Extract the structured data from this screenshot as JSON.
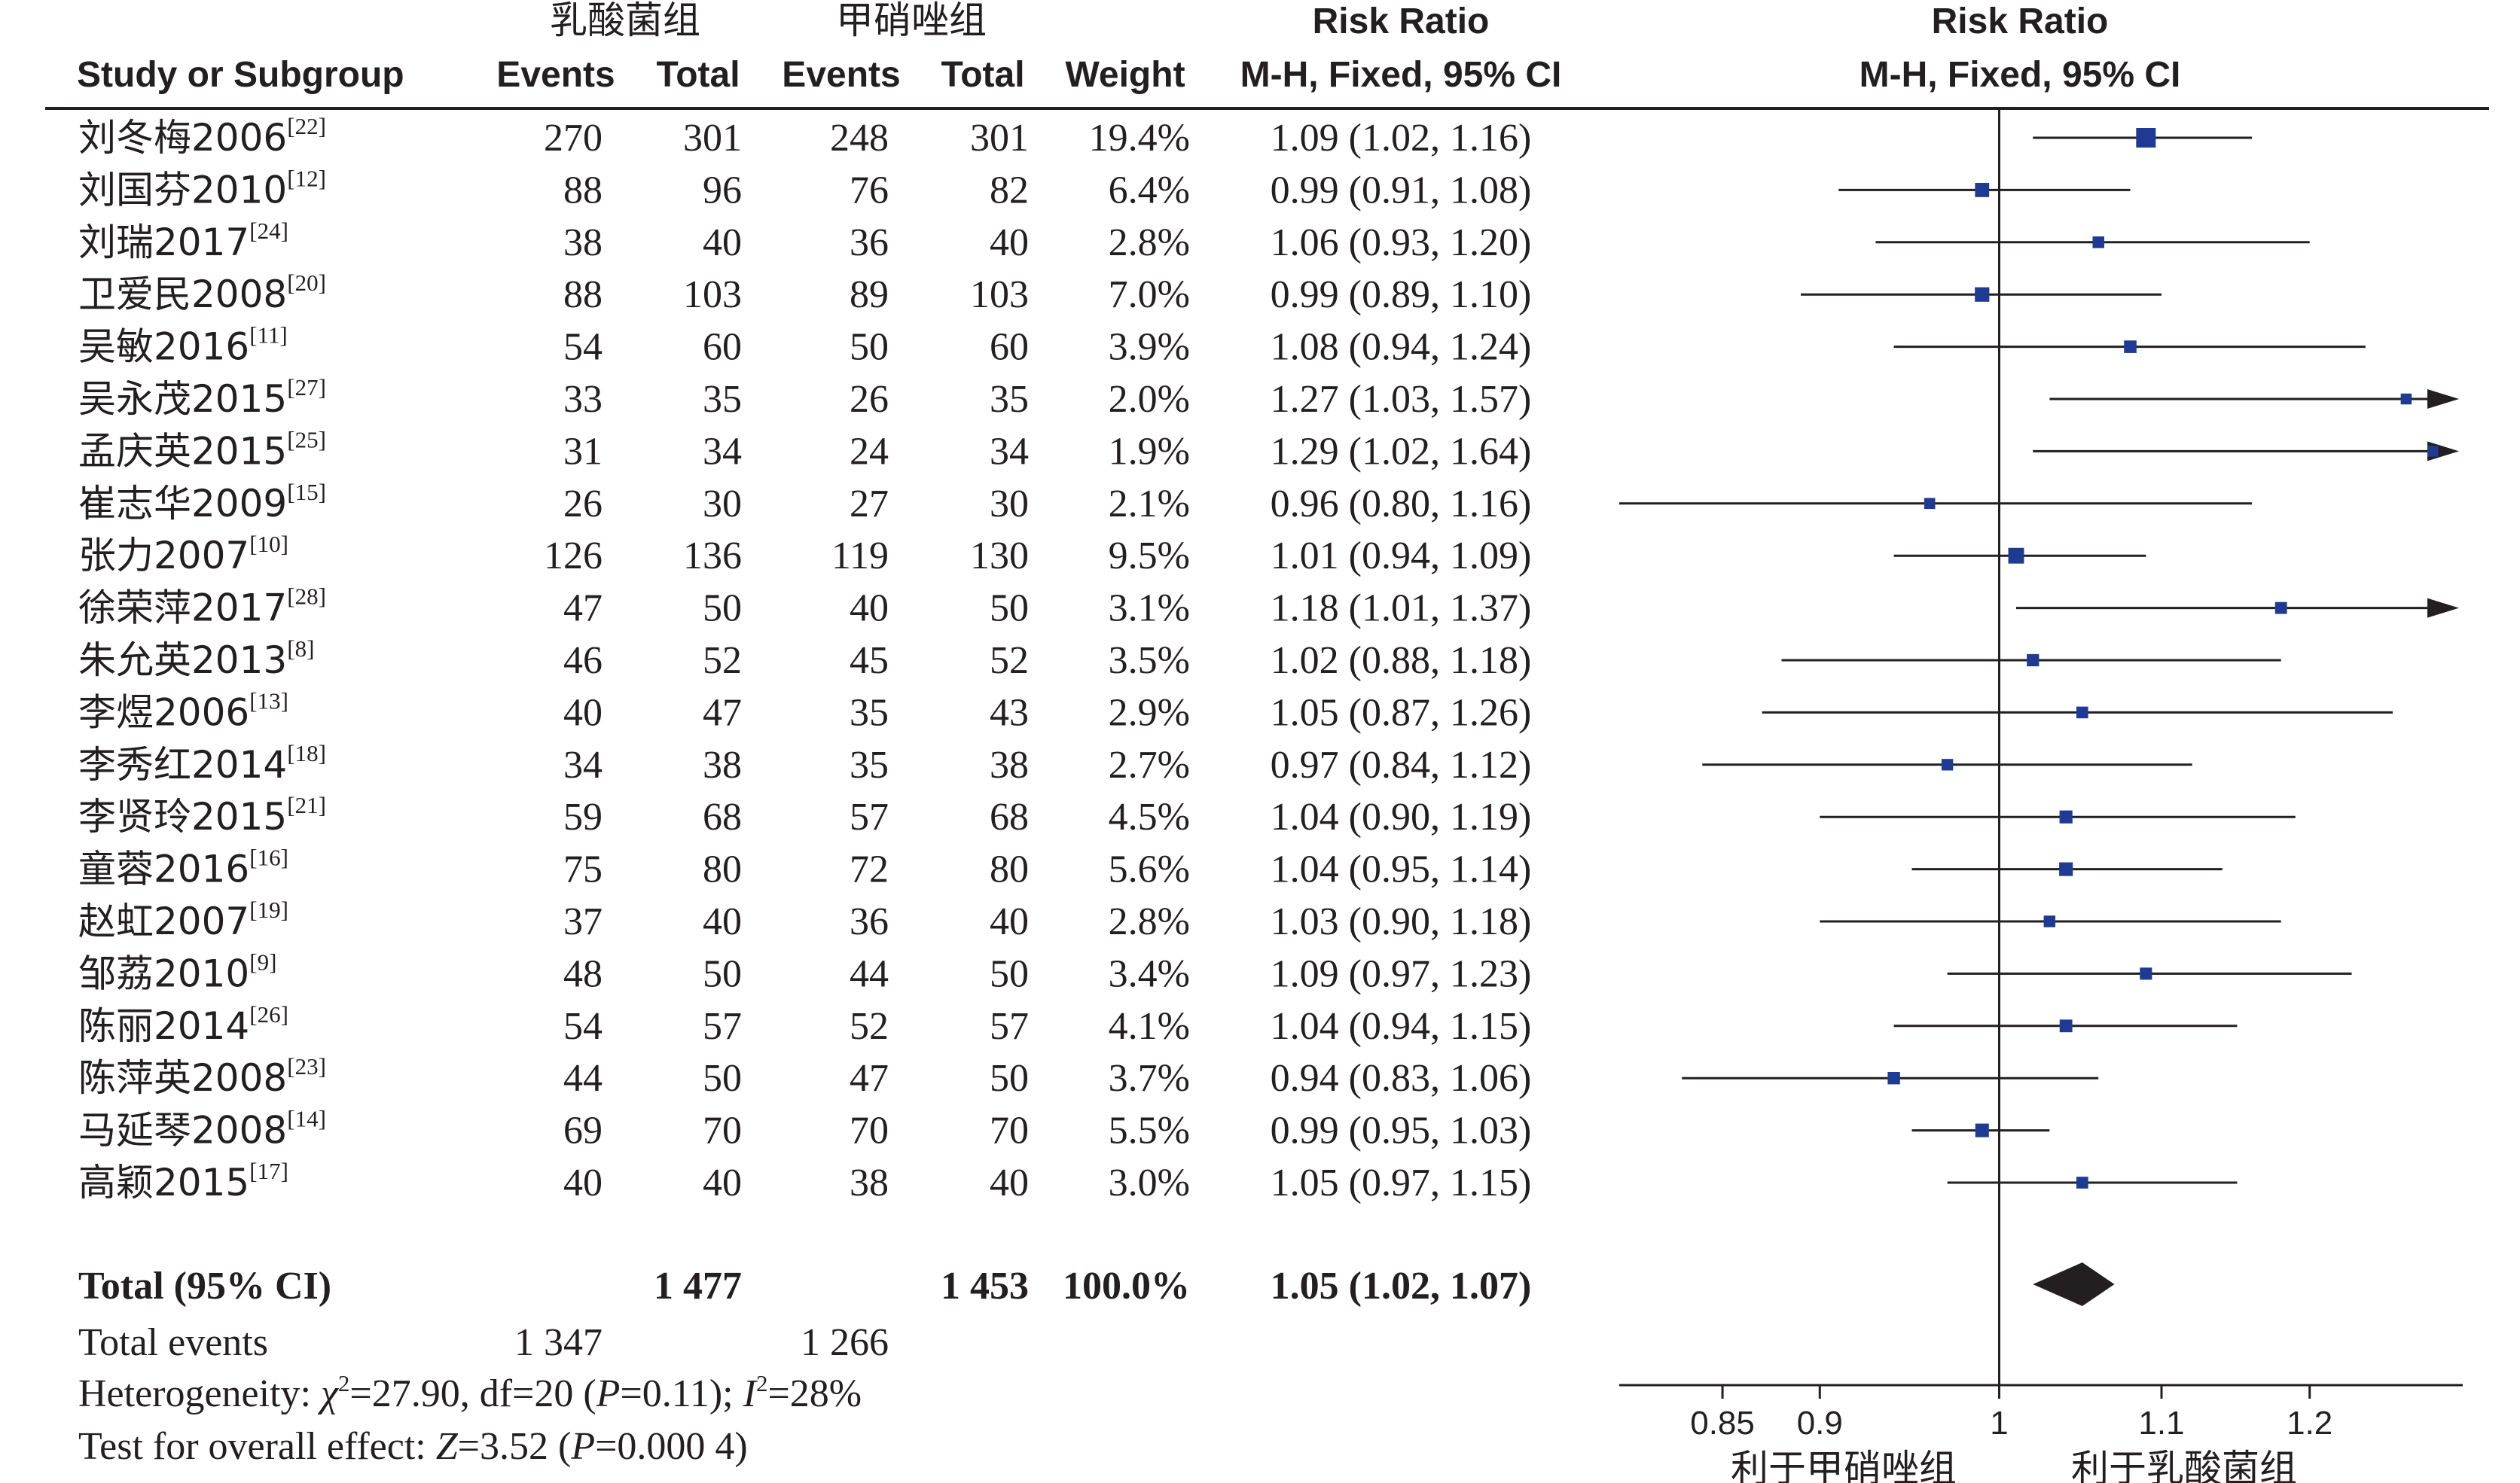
{
  "header": {
    "col_study": "Study or Subgroup",
    "group1": "乳酸菌组",
    "group2": "甲硝唑组",
    "events": "Events",
    "total": "Total",
    "weight": "Weight",
    "rr_title": "Risk Ratio",
    "rr_method": "M-H, Fixed, 95% CI",
    "plot_title": "Risk Ratio",
    "plot_method": "M-H, Fixed, 95% CI"
  },
  "rows": [
    {
      "study": "刘冬梅2006",
      "ref": "[22]",
      "e1": "270",
      "t1": "301",
      "e2": "248",
      "t2": "301",
      "weight": "19.4%",
      "ci": "1.09 (1.02, 1.16)"
    },
    {
      "study": "刘国芬2010",
      "ref": "[12]",
      "e1": "88",
      "t1": "96",
      "e2": "76",
      "t2": "82",
      "weight": "6.4%",
      "ci": "0.99 (0.91, 1.08)"
    },
    {
      "study": "刘瑞2017",
      "ref": "[24]",
      "e1": "38",
      "t1": "40",
      "e2": "36",
      "t2": "40",
      "weight": "2.8%",
      "ci": "1.06 (0.93, 1.20)"
    },
    {
      "study": "卫爱民2008",
      "ref": "[20]",
      "e1": "88",
      "t1": "103",
      "e2": "89",
      "t2": "103",
      "weight": "7.0%",
      "ci": "0.99 (0.89, 1.10)"
    },
    {
      "study": "吴敏2016",
      "ref": "[11]",
      "e1": "54",
      "t1": "60",
      "e2": "50",
      "t2": "60",
      "weight": "3.9%",
      "ci": "1.08 (0.94, 1.24)"
    },
    {
      "study": "吴永茂2015",
      "ref": "[27]",
      "e1": "33",
      "t1": "35",
      "e2": "26",
      "t2": "35",
      "weight": "2.0%",
      "ci": "1.27 (1.03, 1.57)"
    },
    {
      "study": "孟庆英2015",
      "ref": "[25]",
      "e1": "31",
      "t1": "34",
      "e2": "24",
      "t2": "34",
      "weight": "1.9%",
      "ci": "1.29 (1.02, 1.64)"
    },
    {
      "study": "崔志华2009",
      "ref": "[15]",
      "e1": "26",
      "t1": "30",
      "e2": "27",
      "t2": "30",
      "weight": "2.1%",
      "ci": "0.96 (0.80, 1.16)"
    },
    {
      "study": "张力2007",
      "ref": "[10]",
      "e1": "126",
      "t1": "136",
      "e2": "119",
      "t2": "130",
      "weight": "9.5%",
      "ci": "1.01 (0.94, 1.09)"
    },
    {
      "study": "徐荣萍2017",
      "ref": "[28]",
      "e1": "47",
      "t1": "50",
      "e2": "40",
      "t2": "50",
      "weight": "3.1%",
      "ci": "1.18 (1.01, 1.37)"
    },
    {
      "study": "朱允英2013",
      "ref": "[8]",
      "e1": "46",
      "t1": "52",
      "e2": "45",
      "t2": "52",
      "weight": "3.5%",
      "ci": "1.02 (0.88, 1.18)"
    },
    {
      "study": "李煜2006",
      "ref": "[13]",
      "e1": "40",
      "t1": "47",
      "e2": "35",
      "t2": "43",
      "weight": "2.9%",
      "ci": "1.05 (0.87, 1.26)"
    },
    {
      "study": "李秀红2014",
      "ref": "[18]",
      "e1": "34",
      "t1": "38",
      "e2": "35",
      "t2": "38",
      "weight": "2.7%",
      "ci": "0.97 (0.84, 1.12)"
    },
    {
      "study": "李贤玲2015",
      "ref": "[21]",
      "e1": "59",
      "t1": "68",
      "e2": "57",
      "t2": "68",
      "weight": "4.5%",
      "ci": "1.04 (0.90, 1.19)"
    },
    {
      "study": "童蓉2016",
      "ref": "[16]",
      "e1": "75",
      "t1": "80",
      "e2": "72",
      "t2": "80",
      "weight": "5.6%",
      "ci": "1.04 (0.95, 1.14)"
    },
    {
      "study": "赵虹2007",
      "ref": "[19]",
      "e1": "37",
      "t1": "40",
      "e2": "36",
      "t2": "40",
      "weight": "2.8%",
      "ci": "1.03 (0.90, 1.18)"
    },
    {
      "study": "邹荔2010",
      "ref": "[9]",
      "e1": "48",
      "t1": "50",
      "e2": "44",
      "t2": "50",
      "weight": "3.4%",
      "ci": "1.09 (0.97, 1.23)"
    },
    {
      "study": "陈丽2014",
      "ref": "[26]",
      "e1": "54",
      "t1": "57",
      "e2": "52",
      "t2": "57",
      "weight": "4.1%",
      "ci": "1.04 (0.94, 1.15)"
    },
    {
      "study": "陈萍英2008",
      "ref": "[23]",
      "e1": "44",
      "t1": "50",
      "e2": "47",
      "t2": "50",
      "weight": "3.7%",
      "ci": "0.94 (0.83, 1.06)"
    },
    {
      "study": "马延琴2008",
      "ref": "[14]",
      "e1": "69",
      "t1": "70",
      "e2": "70",
      "t2": "70",
      "weight": "5.5%",
      "ci": "0.99 (0.95, 1.03)"
    },
    {
      "study": "高颖2015",
      "ref": "[17]",
      "e1": "40",
      "t1": "40",
      "e2": "38",
      "t2": "40",
      "weight": "3.0%",
      "ci": "1.05 (0.97, 1.15)"
    }
  ],
  "total": {
    "label": "Total (95% CI)",
    "t1": "1 477",
    "t2": "1 453",
    "weight": "100.0%",
    "ci": "1.05 (1.02, 1.07)"
  },
  "events_total": {
    "label": "Total events",
    "e1": "1 347",
    "e2": "1 266"
  },
  "heterogeneity": {
    "prefix": "Heterogeneity: ",
    "chi": "χ",
    "chi_value": "=27.90, df=20 (",
    "p": "P",
    "p_value": "=0.11); ",
    "i": "I",
    "i_value": "=28%"
  },
  "overall": {
    "prefix": "Test for overall effect: ",
    "z": "Z",
    "z_value": "=3.52 (",
    "p": "P",
    "p_value": "=0.000 4)"
  },
  "axis": {
    "ticks": [
      {
        "value": 0.85,
        "label": "0.85"
      },
      {
        "value": 0.9,
        "label": "0.9"
      },
      {
        "value": 1,
        "label": "1"
      },
      {
        "value": 1.1,
        "label": "1.1"
      },
      {
        "value": 1.2,
        "label": "1.2"
      }
    ],
    "favours_left": "利于甲硝唑组",
    "favours_right": "利于乳酸菌组"
  },
  "colors": {
    "marker": "#1f3a93",
    "ink": "#231f20"
  },
  "chart_data": {
    "type": "forest",
    "scale": "log",
    "effect_measure": "Risk Ratio (M-H, Fixed, 95% CI)",
    "xlim": [
      0.8,
      1.31
    ],
    "x_ticks": [
      0.85,
      0.9,
      1,
      1.1,
      1.2
    ],
    "studies": [
      {
        "name": "刘冬梅2006",
        "rr": 1.09,
        "lower": 1.02,
        "upper": 1.16,
        "weight": 19.4
      },
      {
        "name": "刘国芬2010",
        "rr": 0.99,
        "lower": 0.91,
        "upper": 1.08,
        "weight": 6.4
      },
      {
        "name": "刘瑞2017",
        "rr": 1.06,
        "lower": 0.93,
        "upper": 1.2,
        "weight": 2.8
      },
      {
        "name": "卫爱民2008",
        "rr": 0.99,
        "lower": 0.89,
        "upper": 1.1,
        "weight": 7.0
      },
      {
        "name": "吴敏2016",
        "rr": 1.08,
        "lower": 0.94,
        "upper": 1.24,
        "weight": 3.9
      },
      {
        "name": "吴永茂2015",
        "rr": 1.27,
        "lower": 1.03,
        "upper": 1.57,
        "weight": 2.0
      },
      {
        "name": "孟庆英2015",
        "rr": 1.29,
        "lower": 1.02,
        "upper": 1.64,
        "weight": 1.9
      },
      {
        "name": "崔志华2009",
        "rr": 0.96,
        "lower": 0.8,
        "upper": 1.16,
        "weight": 2.1
      },
      {
        "name": "张力2007",
        "rr": 1.01,
        "lower": 0.94,
        "upper": 1.09,
        "weight": 9.5
      },
      {
        "name": "徐荣萍2017",
        "rr": 1.18,
        "lower": 1.01,
        "upper": 1.37,
        "weight": 3.1
      },
      {
        "name": "朱允英2013",
        "rr": 1.02,
        "lower": 0.88,
        "upper": 1.18,
        "weight": 3.5
      },
      {
        "name": "李煜2006",
        "rr": 1.05,
        "lower": 0.87,
        "upper": 1.26,
        "weight": 2.9
      },
      {
        "name": "李秀红2014",
        "rr": 0.97,
        "lower": 0.84,
        "upper": 1.12,
        "weight": 2.7
      },
      {
        "name": "李贤玲2015",
        "rr": 1.04,
        "lower": 0.9,
        "upper": 1.19,
        "weight": 4.5
      },
      {
        "name": "童蓉2016",
        "rr": 1.04,
        "lower": 0.95,
        "upper": 1.14,
        "weight": 5.6
      },
      {
        "name": "赵虹2007",
        "rr": 1.03,
        "lower": 0.9,
        "upper": 1.18,
        "weight": 2.8
      },
      {
        "name": "邹荔2010",
        "rr": 1.09,
        "lower": 0.97,
        "upper": 1.23,
        "weight": 3.4
      },
      {
        "name": "陈丽2014",
        "rr": 1.04,
        "lower": 0.94,
        "upper": 1.15,
        "weight": 4.1
      },
      {
        "name": "陈萍英2008",
        "rr": 0.94,
        "lower": 0.83,
        "upper": 1.06,
        "weight": 3.7
      },
      {
        "name": "马延琴2008",
        "rr": 0.99,
        "lower": 0.95,
        "upper": 1.03,
        "weight": 5.5
      },
      {
        "name": "高颖2015",
        "rr": 1.05,
        "lower": 0.97,
        "upper": 1.15,
        "weight": 3.0
      }
    ],
    "pooled": {
      "rr": 1.05,
      "lower": 1.02,
      "upper": 1.07
    }
  }
}
